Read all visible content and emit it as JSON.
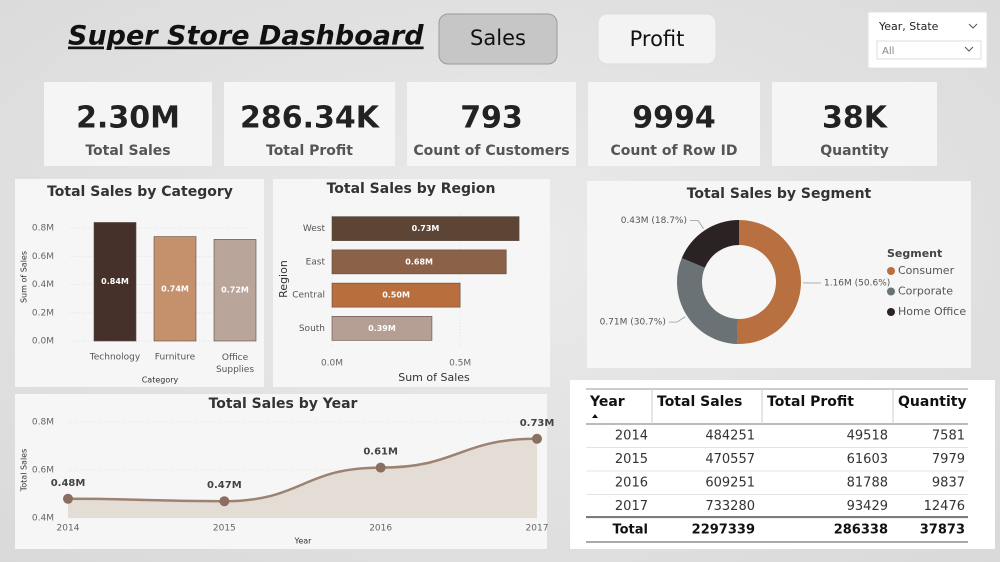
{
  "header": {
    "title": "Super Store Dashboard",
    "buttons": [
      "Sales",
      "Profit"
    ],
    "filter": {
      "label": "Year, State",
      "value": "All"
    }
  },
  "kpis": [
    {
      "value": "2.30M",
      "label": "Total Sales"
    },
    {
      "value": "286.34K",
      "label": "Total Profit"
    },
    {
      "value": "793",
      "label": "Count of Customers"
    },
    {
      "value": "9994",
      "label": "Count of Row ID"
    },
    {
      "value": "38K",
      "label": "Quantity"
    }
  ],
  "chart_data": [
    {
      "type": "bar",
      "title": "Total Sales by Category",
      "x_label": "Category",
      "y_label": "Sum of Sales",
      "categories": [
        "Technology",
        "Furniture",
        "Office Supplies"
      ],
      "values": [
        0.84,
        0.74,
        0.72
      ],
      "value_labels": [
        "0.84M",
        "0.74M",
        "0.72M"
      ],
      "colors": [
        "#45302a",
        "#c4916c",
        "#b9a599"
      ],
      "ylim": [
        0,
        0.9
      ],
      "yticks": [
        {
          "value": 0,
          "label": "0.0M"
        },
        {
          "value": 0.2,
          "label": "0.2M"
        },
        {
          "value": 0.4,
          "label": "0.4M"
        },
        {
          "value": 0.6,
          "label": "0.6M"
        },
        {
          "value": 0.8,
          "label": "0.8M"
        }
      ]
    },
    {
      "type": "barh",
      "title": "Total Sales by Region",
      "x_label": "Sum of Sales",
      "y_label": "Region",
      "categories": [
        "West",
        "East",
        "Central",
        "South"
      ],
      "values": [
        0.73,
        0.68,
        0.5,
        0.39
      ],
      "value_labels": [
        "0.73M",
        "0.68M",
        "0.50M",
        "0.39M"
      ],
      "colors": [
        "#5c4535",
        "#8b6248",
        "#b86e3d",
        "#b59e94"
      ],
      "xlim": [
        0,
        0.8
      ],
      "xticks": [
        {
          "value": 0,
          "label": "0.0M"
        },
        {
          "value": 0.5,
          "label": "0.5M"
        }
      ]
    },
    {
      "type": "donut",
      "title": "Total Sales by Segment",
      "legend_title": "Segment",
      "categories": [
        "Consumer",
        "Corporate",
        "Home Office"
      ],
      "values": [
        1.16,
        0.71,
        0.43
      ],
      "value_labels": [
        "1.16M (50.6%)",
        "0.71M (30.7%)",
        "0.43M (18.7%)"
      ],
      "colors": [
        "#b87040",
        "#6b7275",
        "#2b2323"
      ]
    },
    {
      "type": "area",
      "title": "Total Sales by Year",
      "x_label": "Year",
      "y_label": "Total Sales",
      "x": [
        2014,
        2015,
        2016,
        2017
      ],
      "values": [
        0.48,
        0.47,
        0.61,
        0.73
      ],
      "value_labels": [
        "0.48M",
        "0.47M",
        "0.61M",
        "0.73M"
      ],
      "color": "#9c8272",
      "xlim": [
        2014,
        2017
      ],
      "xticks": [
        2014,
        2015,
        2016,
        2017
      ],
      "ylim": [
        0.4,
        0.8
      ],
      "yticks": [
        {
          "value": 0.4,
          "label": "0.4M"
        },
        {
          "value": 0.6,
          "label": "0.6M"
        },
        {
          "value": 0.8,
          "label": "0.8M"
        }
      ]
    }
  ],
  "table": {
    "columns": [
      "Year",
      "Total Sales",
      "Total Profit",
      "Quantity"
    ],
    "rows": [
      [
        2014,
        484251,
        49518,
        7581
      ],
      [
        2015,
        470557,
        61603,
        7979
      ],
      [
        2016,
        609251,
        81788,
        9837
      ],
      [
        2017,
        733280,
        93429,
        12476
      ]
    ],
    "total": [
      "Total",
      2297339,
      286338,
      37873
    ]
  }
}
